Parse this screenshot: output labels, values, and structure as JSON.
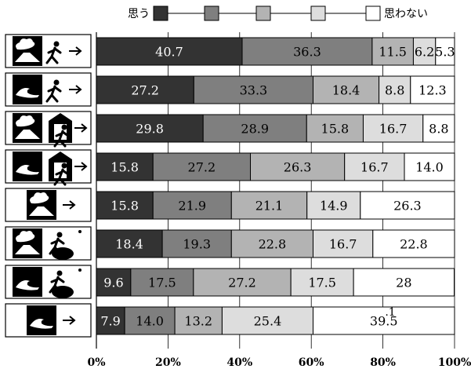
{
  "chart_data": {
    "type": "bar",
    "orientation": "horizontal",
    "stacked": true,
    "xlim": [
      0,
      100
    ],
    "x_ticks": [
      "0%",
      "20%",
      "40%",
      "60%",
      "80%",
      "100%"
    ],
    "legend": {
      "placement": "top",
      "left_label": "思う",
      "right_label": "思わない"
    },
    "category_icons": [
      "eruption-exit-icon",
      "tsunami-exit-icon",
      "eruption-shelter-icon",
      "tsunami-shelter-icon",
      "eruption-arrow-icon",
      "eruption-evacuate-high-ground-icon",
      "tsunami-evacuate-high-ground-icon",
      "tsunami-arrow-icon"
    ],
    "series": [
      {
        "color": "#333333",
        "values": [
          40.7,
          27.2,
          29.8,
          15.8,
          15.8,
          18.4,
          9.6,
          7.9
        ]
      },
      {
        "color": "#7f7f7f",
        "values": [
          36.3,
          33.3,
          28.9,
          27.2,
          21.9,
          19.3,
          17.5,
          14.0
        ]
      },
      {
        "color": "#b3b3b3",
        "values": [
          11.5,
          18.4,
          15.8,
          26.3,
          21.1,
          22.8,
          27.2,
          13.2
        ]
      },
      {
        "color": "#dddddd",
        "values": [
          6.2,
          8.8,
          16.7,
          16.7,
          14.9,
          16.7,
          17.5,
          25.4
        ]
      },
      {
        "color": "#ffffff",
        "values": [
          5.3,
          12.3,
          8.8,
          14.0,
          26.3,
          22.8,
          28.1,
          39.5
        ]
      }
    ],
    "data_labels": [
      [
        "40.7",
        "36.3",
        "11.5",
        "6.2",
        "5.3"
      ],
      [
        "27.2",
        "33.3",
        "18.4",
        "8.8",
        "12.3"
      ],
      [
        "29.8",
        "28.9",
        "15.8",
        "16.7",
        "8.8"
      ],
      [
        "15.8",
        "27.2",
        "26.3",
        "16.7",
        "14.0"
      ],
      [
        "15.8",
        "21.9",
        "21.1",
        "14.9",
        "26.3"
      ],
      [
        "18.4",
        "19.3",
        "22.8",
        "16.7",
        "22.8"
      ],
      [
        "9.6",
        "17.5",
        "27.2",
        "17.5",
        "28"
      ],
      [
        "7.9",
        "14.0",
        "13.2",
        "25.4",
        "39.5"
      ]
    ],
    "annotation": ".1",
    "grid": true
  }
}
